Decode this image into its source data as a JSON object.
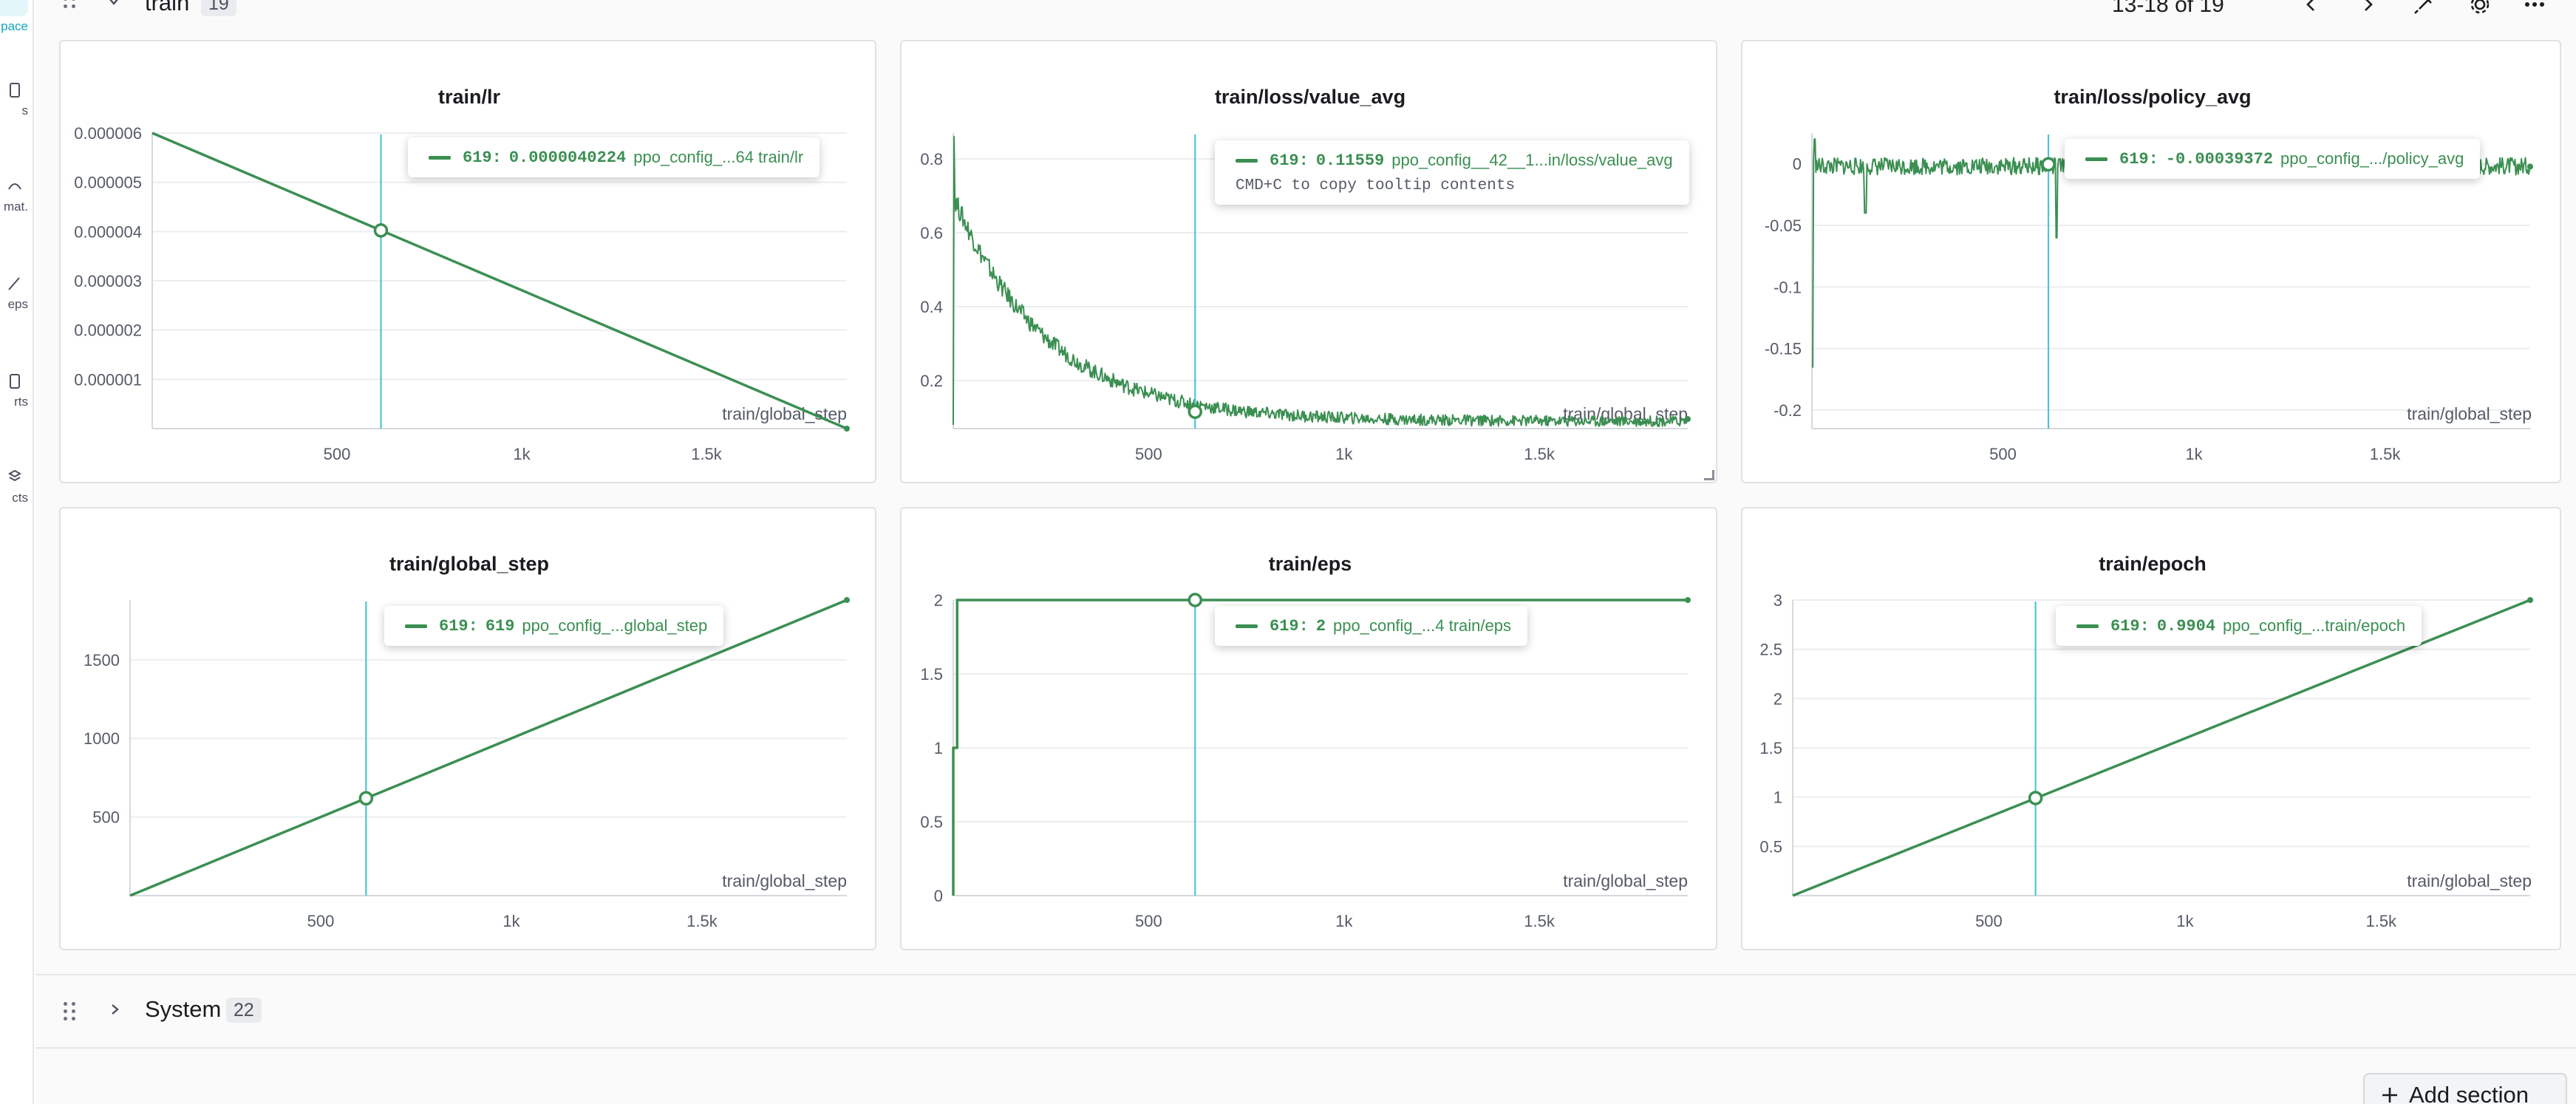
{
  "sidebar": {
    "items": [
      {
        "label": "pace",
        "icon": "workspace-icon",
        "active": true
      },
      {
        "label": "s",
        "icon": "runs-icon"
      },
      {
        "label": "mat.",
        "icon": "automations-icon"
      },
      {
        "label": "eps",
        "icon": "sweeps-icon"
      },
      {
        "label": "rts",
        "icon": "reports-icon"
      },
      {
        "label": "cts",
        "icon": "artifacts-icon"
      }
    ]
  },
  "section_train": {
    "title": "train",
    "count": "19"
  },
  "pager": {
    "label": "13-18 of 19"
  },
  "toolbar_icons": [
    "chevron-left-icon",
    "chevron-right-icon",
    "pin-icon",
    "gear-icon",
    "more-icon"
  ],
  "section_system": {
    "title": "System",
    "count": "22"
  },
  "add_section": {
    "label": "Add section"
  },
  "colors": {
    "series": "#3b8f52",
    "cursor": "#4fc3d9",
    "accent": "#13a6c2"
  },
  "chart_data": [
    {
      "type": "line",
      "title": "train/lr",
      "xlabel": "train/global_step",
      "xlim": [
        0,
        1880
      ],
      "ylim": [
        0,
        6e-06
      ],
      "xticks": [
        {
          "v": 500,
          "t": "500"
        },
        {
          "v": 1000,
          "t": "1k"
        },
        {
          "v": 1500,
          "t": "1.5k"
        }
      ],
      "yticks": [
        {
          "v": 6e-06,
          "t": "0.000006"
        },
        {
          "v": 5e-06,
          "t": "0.000005"
        },
        {
          "v": 4e-06,
          "t": "0.000004"
        },
        {
          "v": 3e-06,
          "t": "0.000003"
        },
        {
          "v": 2e-06,
          "t": "0.000002"
        },
        {
          "v": 1e-06,
          "t": "0.000001"
        }
      ],
      "series": [
        {
          "name": "ppo_config_...64 train/lr",
          "x": [
            0,
            1880
          ],
          "y": [
            6e-06,
            0.0
          ]
        }
      ],
      "cursor": {
        "x": 619,
        "y": 4.0224e-06
      },
      "tooltip": {
        "step": "619",
        "value": "0.0000040224",
        "name": "ppo_config_...64 train/lr"
      }
    },
    {
      "type": "line",
      "title": "train/loss/value_avg",
      "xlabel": "train/global_step",
      "xlim": [
        0,
        1880
      ],
      "ylim": [
        0.07,
        0.87
      ],
      "xticks": [
        {
          "v": 500,
          "t": "500"
        },
        {
          "v": 1000,
          "t": "1k"
        },
        {
          "v": 1500,
          "t": "1.5k"
        }
      ],
      "yticks": [
        {
          "v": 0.8,
          "t": "0.8"
        },
        {
          "v": 0.6,
          "t": "0.6"
        },
        {
          "v": 0.4,
          "t": "0.4"
        },
        {
          "v": 0.2,
          "t": "0.2"
        }
      ],
      "generator": {
        "kind": "decay",
        "start": 0.7,
        "end": 0.09,
        "rate": 0.0042,
        "noise": 0.028
      },
      "series": [
        {
          "name": "ppo_config__42__1...in/loss/value_avg"
        }
      ],
      "cursor": {
        "x": 619,
        "y": 0.11559
      },
      "tooltip": {
        "step": "619",
        "value": "0.11559",
        "name": "ppo_config__42__1...in/loss/value_avg",
        "hint": "CMD+C to copy tooltip contents"
      }
    },
    {
      "type": "line",
      "title": "train/loss/policy_avg",
      "xlabel": "train/global_step",
      "xlim": [
        0,
        1880
      ],
      "ylim": [
        -0.215,
        0.025
      ],
      "xticks": [
        {
          "v": 500,
          "t": "500"
        },
        {
          "v": 1000,
          "t": "1k"
        },
        {
          "v": 1500,
          "t": "1.5k"
        }
      ],
      "yticks": [
        {
          "v": 0,
          "t": "0"
        },
        {
          "v": -0.05,
          "t": "-0.05"
        },
        {
          "v": -0.1,
          "t": "-0.1"
        },
        {
          "v": -0.15,
          "t": "-0.15"
        },
        {
          "v": -0.2,
          "t": "-0.2"
        }
      ],
      "generator": {
        "kind": "noise",
        "center": -0.002,
        "noise": 0.007,
        "spikes": [
          {
            "x": 0,
            "y": -0.165
          },
          {
            "x": 8,
            "y": 0.02
          },
          {
            "x": 140,
            "y": -0.04
          },
          {
            "x": 640,
            "y": -0.06
          }
        ]
      },
      "series": [
        {
          "name": "ppo_config_.../policy_avg"
        }
      ],
      "cursor": {
        "x": 619,
        "y": -0.00039372
      },
      "tooltip": {
        "step": "619",
        "value": "-0.00039372",
        "name": "ppo_config_.../policy_avg"
      }
    },
    {
      "type": "line",
      "title": "train/global_step",
      "xlabel": "train/global_step",
      "xlim": [
        0,
        1880
      ],
      "ylim": [
        0,
        1880
      ],
      "xticks": [
        {
          "v": 500,
          "t": "500"
        },
        {
          "v": 1000,
          "t": "1k"
        },
        {
          "v": 1500,
          "t": "1.5k"
        }
      ],
      "yticks": [
        {
          "v": 1500,
          "t": "1500"
        },
        {
          "v": 1000,
          "t": "1000"
        },
        {
          "v": 500,
          "t": "500"
        }
      ],
      "series": [
        {
          "name": "ppo_config_...global_step",
          "x": [
            0,
            1880
          ],
          "y": [
            0,
            1880
          ]
        }
      ],
      "cursor": {
        "x": 619,
        "y": 619
      },
      "tooltip": {
        "step": "619",
        "value": "619",
        "name": "ppo_config_...global_step"
      }
    },
    {
      "type": "line",
      "title": "train/eps",
      "xlabel": "train/global_step",
      "xlim": [
        0,
        1880
      ],
      "ylim": [
        0,
        2
      ],
      "xticks": [
        {
          "v": 500,
          "t": "500"
        },
        {
          "v": 1000,
          "t": "1k"
        },
        {
          "v": 1500,
          "t": "1.5k"
        }
      ],
      "yticks": [
        {
          "v": 2,
          "t": "2"
        },
        {
          "v": 1.5,
          "t": "1.5"
        },
        {
          "v": 1,
          "t": "1"
        },
        {
          "v": 0.5,
          "t": "0.5"
        },
        {
          "v": 0,
          "t": "0"
        }
      ],
      "series": [
        {
          "name": "ppo_config_...4 train/eps",
          "x": [
            0,
            0,
            5,
            10,
            10,
            15,
            15,
            1880
          ],
          "y": [
            0,
            1,
            1,
            1,
            2,
            2,
            2,
            2
          ]
        }
      ],
      "cursor": {
        "x": 619,
        "y": 2
      },
      "tooltip": {
        "step": "619",
        "value": "2",
        "name": "ppo_config_...4 train/eps"
      }
    },
    {
      "type": "line",
      "title": "train/epoch",
      "xlabel": "train/global_step",
      "xlim": [
        0,
        1880
      ],
      "ylim": [
        0,
        3
      ],
      "xticks": [
        {
          "v": 500,
          "t": "500"
        },
        {
          "v": 1000,
          "t": "1k"
        },
        {
          "v": 1500,
          "t": "1.5k"
        }
      ],
      "yticks": [
        {
          "v": 3,
          "t": "3"
        },
        {
          "v": 2.5,
          "t": "2.5"
        },
        {
          "v": 2,
          "t": "2"
        },
        {
          "v": 1.5,
          "t": "1.5"
        },
        {
          "v": 1,
          "t": "1"
        },
        {
          "v": 0.5,
          "t": "0.5"
        }
      ],
      "series": [
        {
          "name": "ppo_config_...train/epoch",
          "x": [
            0,
            1880
          ],
          "y": [
            0,
            3
          ]
        }
      ],
      "cursor": {
        "x": 619,
        "y": 0.9904
      },
      "tooltip": {
        "step": "619",
        "value": "0.9904",
        "name": "ppo_config_...train/epoch"
      }
    }
  ]
}
